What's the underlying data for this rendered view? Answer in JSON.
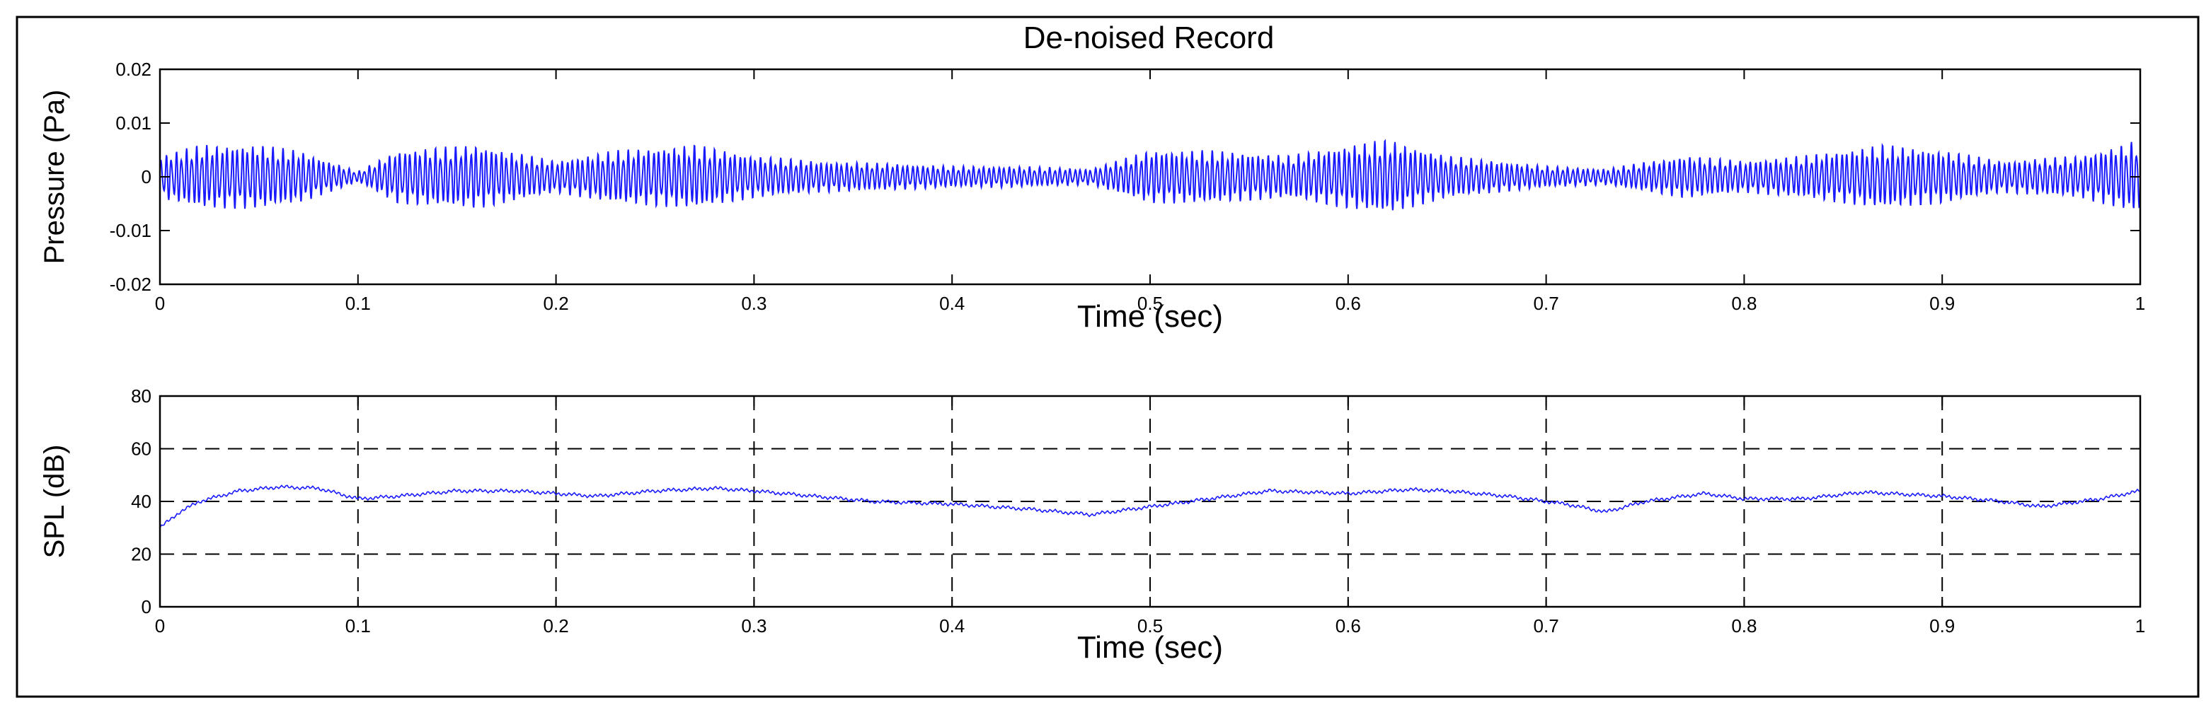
{
  "figure": {
    "title": "De-noised Record"
  },
  "chart_data": [
    {
      "type": "line",
      "name": "pressure",
      "title": "De-noised Record",
      "xlabel": "Time (sec)",
      "ylabel": "Pressure (Pa)",
      "xlim": [
        0,
        1
      ],
      "ylim": [
        -0.02,
        0.02
      ],
      "xticks": [
        "0",
        "0.1",
        "0.2",
        "0.3",
        "0.4",
        "0.5",
        "0.6",
        "0.7",
        "0.8",
        "0.9",
        "1"
      ],
      "yticks": [
        "-0.02",
        "-0.01",
        "0",
        "0.01",
        "0.02"
      ],
      "grid": false,
      "series": [
        {
          "name": "pressure",
          "color": "#1a1aff",
          "signal": {
            "carrier_hz": 390,
            "envelope_time": [
              0,
              0.02,
              0.05,
              0.07,
              0.1,
              0.12,
              0.16,
              0.2,
              0.23,
              0.27,
              0.3,
              0.33,
              0.37,
              0.4,
              0.43,
              0.47,
              0.5,
              0.53,
              0.57,
              0.6,
              0.62,
              0.65,
              0.7,
              0.73,
              0.77,
              0.8,
              0.83,
              0.87,
              0.9,
              0.93,
              0.97,
              1.0
            ],
            "envelope_amp": [
              0.004,
              0.006,
              0.006,
              0.005,
              0.001,
              0.005,
              0.006,
              0.003,
              0.005,
              0.006,
              0.004,
              0.003,
              0.0025,
              0.002,
              0.002,
              0.0015,
              0.005,
              0.005,
              0.004,
              0.006,
              0.007,
              0.004,
              0.002,
              0.0015,
              0.004,
              0.003,
              0.004,
              0.006,
              0.005,
              0.003,
              0.004,
              0.007
            ]
          }
        }
      ]
    },
    {
      "type": "line",
      "name": "spl",
      "title": "",
      "xlabel": "Time (sec)",
      "ylabel": "SPL (dB)",
      "xlim": [
        0,
        1
      ],
      "ylim": [
        0,
        80
      ],
      "xticks": [
        "0",
        "0.1",
        "0.2",
        "0.3",
        "0.4",
        "0.5",
        "0.6",
        "0.7",
        "0.8",
        "0.9",
        "1"
      ],
      "yticks": [
        "0",
        "20",
        "40",
        "60",
        "80"
      ],
      "grid": true,
      "series": [
        {
          "name": "SPL",
          "color": "#1a1aff",
          "x": [
            0,
            0.005,
            0.01,
            0.02,
            0.04,
            0.06,
            0.08,
            0.1,
            0.12,
            0.15,
            0.18,
            0.2,
            0.22,
            0.25,
            0.28,
            0.3,
            0.33,
            0.36,
            0.4,
            0.44,
            0.47,
            0.5,
            0.53,
            0.56,
            0.6,
            0.63,
            0.65,
            0.68,
            0.71,
            0.73,
            0.75,
            0.78,
            0.8,
            0.83,
            0.86,
            0.9,
            0.93,
            0.95,
            0.98,
            1.0
          ],
          "y": [
            30,
            33,
            36,
            40,
            44,
            45.5,
            45,
            41,
            42,
            44,
            44,
            43,
            42,
            44,
            45,
            44,
            42,
            40,
            39,
            37,
            35,
            38,
            41,
            44,
            43,
            44.5,
            44,
            42,
            39,
            36,
            40,
            43,
            41,
            41,
            43.5,
            42,
            40,
            38,
            41,
            44
          ]
        }
      ]
    }
  ]
}
